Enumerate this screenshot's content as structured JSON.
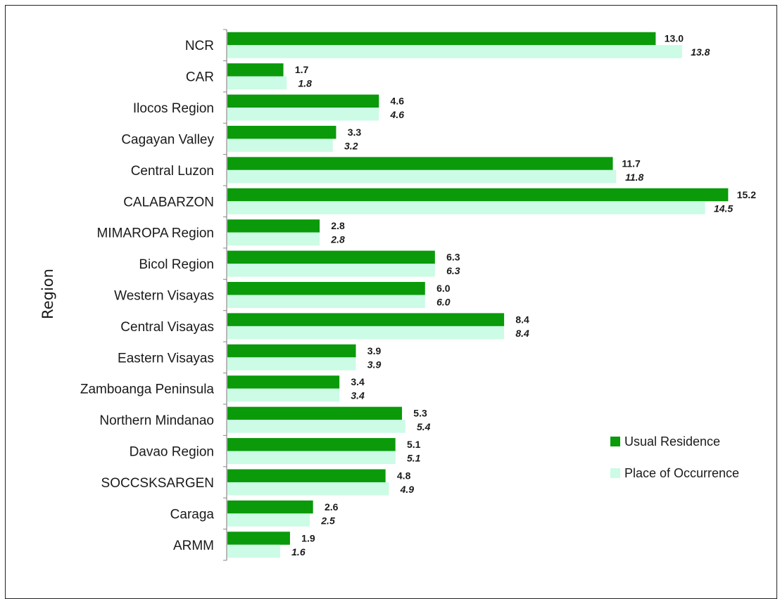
{
  "chart_data": {
    "type": "bar",
    "orientation": "horizontal",
    "title": "",
    "ylabel": "Region",
    "xlabel": "",
    "xlim": [
      0,
      16
    ],
    "grid": false,
    "legend_position": "right",
    "categories": [
      "NCR",
      "CAR",
      "Ilocos Region",
      "Cagayan Valley",
      "Central Luzon",
      "CALABARZON",
      "MIMAROPA Region",
      "Bicol Region",
      "Western Visayas",
      "Central Visayas",
      "Eastern Visayas",
      "Zamboanga Peninsula",
      "Northern Mindanao",
      "Davao Region",
      "SOCCSKSARGEN",
      "Caraga",
      "ARMM"
    ],
    "series": [
      {
        "name": "Usual Residence",
        "color": "#0a9a0a",
        "values": [
          13.0,
          1.7,
          4.6,
          3.3,
          11.7,
          15.2,
          2.8,
          6.3,
          6.0,
          8.4,
          3.9,
          3.4,
          5.3,
          5.1,
          4.8,
          2.6,
          1.9
        ],
        "labels": [
          "13.0",
          "1.7",
          "4.6",
          "3.3",
          "11.7",
          "15.2",
          "2.8",
          "6.3",
          "6.0",
          "8.4",
          "3.9",
          "3.4",
          "5.3",
          "5.1",
          "4.8",
          "2.6",
          "1.9"
        ]
      },
      {
        "name": "Place of Occurrence",
        "color": "#ccfbe6",
        "values": [
          13.8,
          1.8,
          4.6,
          3.2,
          11.8,
          14.5,
          2.8,
          6.3,
          6.0,
          8.4,
          3.9,
          3.4,
          5.4,
          5.1,
          4.9,
          2.5,
          1.6
        ],
        "labels": [
          "13.8",
          "1.8",
          "4.6",
          "3.2",
          "11.8",
          "14.5",
          "2.8",
          "6.3",
          "6.0",
          "8.4",
          "3.9",
          "3.4",
          "5.4",
          "5.1",
          "4.9",
          "2.5",
          "1.6"
        ]
      }
    ]
  }
}
